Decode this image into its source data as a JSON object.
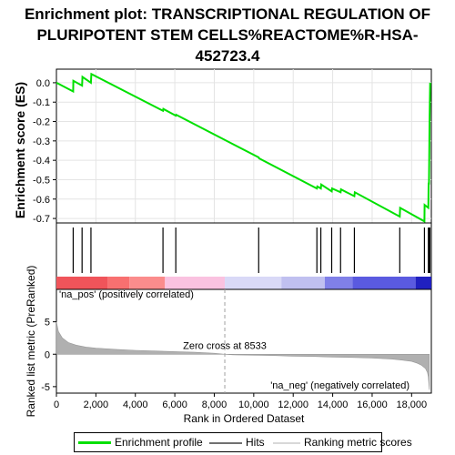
{
  "title_lines": [
    "Enrichment plot: TRANSCRIPTIONAL REGULATION OF",
    "PLURIPOTENT STEM CELLS%REACTOME%R-HSA-",
    "452723.4"
  ],
  "colors": {
    "es_line": "#00e000",
    "hits": "#000000",
    "ranking_fill": "#b0b0b0",
    "zero_line": "#a0a0a0"
  },
  "legend": {
    "items": [
      {
        "label": "Enrichment profile",
        "color": "#00e000"
      },
      {
        "label": "Hits",
        "color": "#707070"
      },
      {
        "label": "Ranking metric scores",
        "color": "#d8d8d8"
      }
    ]
  },
  "chart_data": [
    {
      "type": "line",
      "name": "enrichment-profile",
      "ylabel": "Enrichment score (ES)",
      "xlim": [
        0,
        19000
      ],
      "ylim": [
        -0.77,
        0.07
      ],
      "yticks": [
        0.0,
        -0.1,
        -0.2,
        -0.3,
        -0.4,
        -0.5,
        -0.6,
        -0.7
      ],
      "ytick_labels": [
        "0.0",
        "-0.1",
        "-0.2",
        "-0.3",
        "-0.4",
        "-0.5",
        "-0.6",
        "-0.7"
      ],
      "grid": true,
      "x": [
        0,
        850,
        860,
        1300,
        1320,
        1750,
        1770,
        5400,
        5420,
        6050,
        6070,
        10250,
        10270,
        13200,
        13220,
        13400,
        13420,
        13950,
        13970,
        14400,
        14420,
        15100,
        15120,
        17400,
        17420,
        18650,
        18660,
        18850,
        18860,
        18880,
        18895,
        18910,
        18925,
        18940
      ],
      "y": [
        0.0,
        -0.045,
        0.01,
        -0.015,
        0.03,
        0.0,
        0.045,
        -0.145,
        -0.135,
        -0.17,
        -0.165,
        -0.385,
        -0.39,
        -0.545,
        -0.535,
        -0.545,
        -0.525,
        -0.56,
        -0.545,
        -0.565,
        -0.55,
        -0.585,
        -0.565,
        -0.69,
        -0.645,
        -0.715,
        -0.63,
        -0.645,
        -0.52,
        -0.52,
        -0.385,
        -0.21,
        -0.085,
        0.0
      ]
    },
    {
      "type": "bar",
      "name": "hits",
      "x": [
        850,
        1300,
        1750,
        5400,
        6050,
        10250,
        13200,
        13400,
        13950,
        14400,
        15100,
        17400,
        18650,
        18850,
        18880,
        18895,
        18910,
        18925
      ]
    },
    {
      "type": "area",
      "name": "ranked-list-metric",
      "xlabel": "Rank in Ordered Dataset",
      "ylabel": "Ranked list metric (PreRanked)",
      "xlim": [
        0,
        19000
      ],
      "ylim": [
        -6,
        10
      ],
      "yticks": [
        5,
        0,
        -5
      ],
      "ytick_labels": [
        "5",
        "0",
        "-5"
      ],
      "xticks": [
        0,
        2000,
        4000,
        6000,
        8000,
        10000,
        12000,
        14000,
        16000,
        18000
      ],
      "xtick_labels": [
        "0",
        "2,000",
        "4,000",
        "6,000",
        "8,000",
        "10,000",
        "12,000",
        "14,000",
        "16,000",
        "18,000"
      ],
      "x": [
        0,
        100,
        300,
        600,
        1000,
        1500,
        2000,
        3000,
        4000,
        5000,
        6000,
        7000,
        8000,
        8533,
        9000,
        10000,
        11000,
        12000,
        13000,
        14000,
        15000,
        16000,
        17000,
        17500,
        18000,
        18300,
        18500,
        18700,
        18800,
        18850,
        18900
      ],
      "y": [
        5.0,
        3.5,
        2.5,
        1.8,
        1.4,
        1.1,
        0.95,
        0.75,
        0.6,
        0.5,
        0.4,
        0.3,
        0.15,
        0.0,
        -0.1,
        -0.15,
        -0.2,
        -0.3,
        -0.35,
        -0.45,
        -0.5,
        -0.6,
        -0.75,
        -0.9,
        -1.1,
        -1.4,
        -1.7,
        -2.2,
        -2.8,
        -3.5,
        -5.5
      ],
      "zero_cross_label": "Zero cross at 8533",
      "zero_cross": 8533,
      "pos_label": "'na_pos' (positively correlated)",
      "neg_label": "'na_neg' (negatively correlated)"
    }
  ],
  "colorbar": [
    {
      "x0": 0,
      "x1": 2600,
      "color": "#f0545a"
    },
    {
      "x0": 2600,
      "x1": 3700,
      "color": "#f87070"
    },
    {
      "x0": 3700,
      "x1": 5500,
      "color": "#fb8c8c"
    },
    {
      "x0": 5500,
      "x1": 8533,
      "color": "#fac2e0"
    },
    {
      "x0": 8533,
      "x1": 11400,
      "color": "#d9d9f7"
    },
    {
      "x0": 11400,
      "x1": 13600,
      "color": "#c0c0f0"
    },
    {
      "x0": 13600,
      "x1": 15000,
      "color": "#8080e8"
    },
    {
      "x0": 15000,
      "x1": 18200,
      "color": "#5a5ae0"
    },
    {
      "x0": 18200,
      "x1": 19000,
      "color": "#2020c0"
    }
  ]
}
